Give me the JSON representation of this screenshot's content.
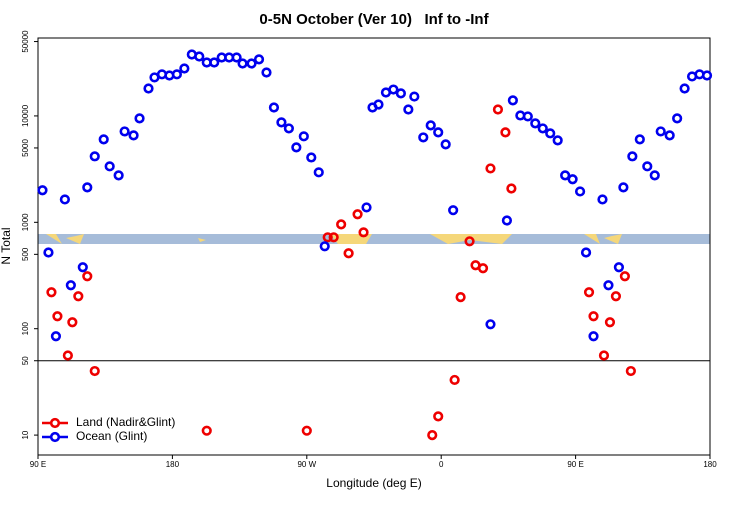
{
  "chart_data": {
    "type": "scatter",
    "title": "0-5N October (Ver 10)   Inf to -Inf",
    "x_label": "Longitude (deg E)",
    "y_label": "N Total",
    "xlim": [
      90,
      540
    ],
    "ylim": [
      6.5,
      54000
    ],
    "log_y": true,
    "grid": false,
    "legend": "bottom-left",
    "hline": 50,
    "xticks": [
      {
        "value": 90,
        "label": "90 E"
      },
      180,
      {
        "value": 270,
        "label": "90 W"
      },
      {
        "value": 360,
        "label": "0"
      },
      {
        "value": 450,
        "label": "90 E"
      },
      {
        "value": 540,
        "label": "180"
      }
    ],
    "yticks": [
      10,
      50,
      100,
      500,
      1000,
      5000,
      10000,
      50000
    ],
    "series": [
      {
        "name": "Land (Nadir&Glint)",
        "color": "#ee0000",
        "x": [
          99,
          103,
          110,
          113,
          117,
          123,
          128,
          203,
          270,
          284,
          288,
          293,
          298,
          304,
          308,
          354,
          358,
          369,
          373,
          379,
          383,
          388,
          393,
          398,
          403,
          407,
          459,
          462,
          469,
          473,
          477,
          483,
          487
        ],
        "values": [
          220,
          131,
          56,
          115,
          202,
          311,
          40,
          11,
          11,
          723,
          723,
          957,
          512,
          1190,
          805,
          10,
          15,
          33,
          198,
          663,
          395,
          370,
          3210,
          11500,
          7000,
          2080,
          220,
          131,
          56,
          115,
          202,
          311,
          40
        ]
      },
      {
        "name": "Ocean (Glint)",
        "color": "#0000ee",
        "x": [
          93,
          97,
          102,
          108,
          112,
          120,
          123,
          128,
          134,
          138,
          144,
          148,
          154,
          158,
          164,
          168,
          173,
          178,
          183,
          188,
          193,
          198,
          203,
          208,
          213,
          218,
          223,
          227,
          233,
          238,
          243,
          248,
          253,
          258,
          263,
          268,
          273,
          278,
          282,
          310,
          314,
          318,
          323,
          328,
          333,
          338,
          342,
          348,
          353,
          358,
          363,
          368,
          393,
          404,
          408,
          413,
          418,
          423,
          428,
          433,
          438,
          443,
          448,
          453,
          457,
          462,
          468,
          472,
          479,
          482,
          488,
          493,
          498,
          503,
          507,
          513,
          518,
          523,
          528,
          533,
          538
        ],
        "values": [
          2000,
          520,
          85,
          1640,
          256,
          378,
          2130,
          4170,
          6020,
          3360,
          2760,
          7150,
          6560,
          9480,
          18100,
          23000,
          24600,
          24000,
          24600,
          27900,
          37800,
          36200,
          31800,
          31800,
          35400,
          35400,
          35400,
          31100,
          31100,
          34000,
          25600,
          12000,
          8690,
          7630,
          5060,
          6430,
          4070,
          2950,
          595,
          1380,
          12000,
          12800,
          16600,
          17700,
          16300,
          11500,
          15200,
          6280,
          8150,
          7000,
          5400,
          1300,
          110,
          1040,
          14000,
          10100,
          9890,
          8510,
          7630,
          6860,
          5890,
          2760,
          2540,
          1950,
          520,
          85,
          1640,
          256,
          378,
          2130,
          4170,
          6020,
          3360,
          2760,
          7150,
          6560,
          9480,
          18100,
          23500,
          24600,
          24000
        ]
      }
    ]
  }
}
